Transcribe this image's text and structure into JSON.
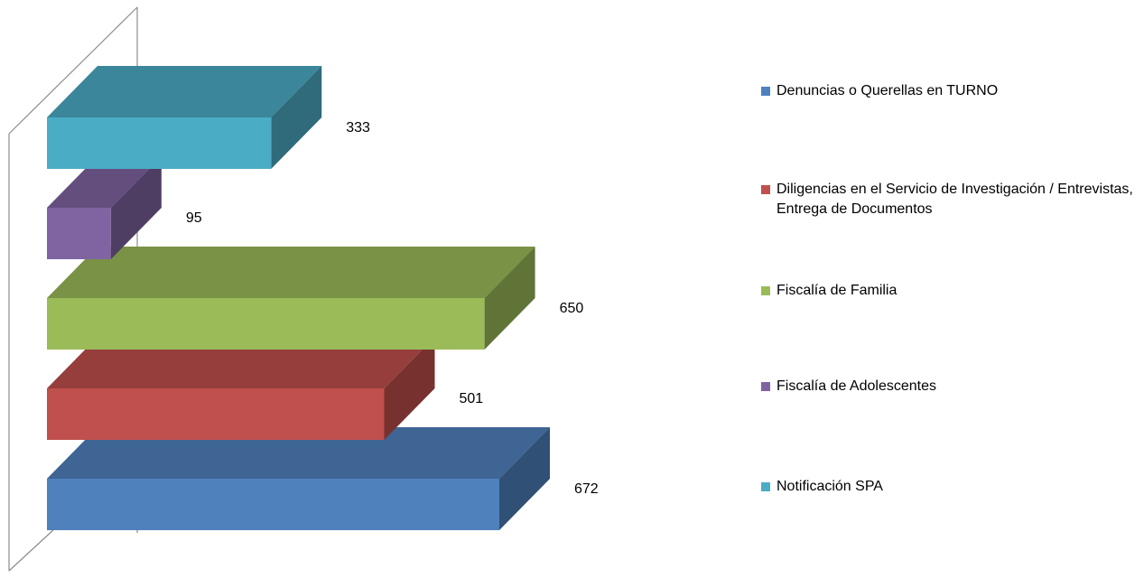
{
  "chart_data": {
    "type": "bar3d",
    "series": [
      {
        "name": "Denuncias o Querellas en TURNO",
        "color": "#4f81bd",
        "values": [
          672
        ]
      },
      {
        "name": "Diligencias en el Servicio de Investigación / Entrevistas, Entrega de Documentos",
        "color": "#c0504d",
        "values": [
          501
        ]
      },
      {
        "name": "Fiscalía de Familia",
        "color": "#9bbb59",
        "values": [
          650
        ]
      },
      {
        "name": "Fiscalía de Adolescentes",
        "color": "#8064a2",
        "values": [
          95
        ]
      },
      {
        "name": "Notificación SPA",
        "color": "#4bacc6",
        "values": [
          333
        ]
      }
    ]
  }
}
